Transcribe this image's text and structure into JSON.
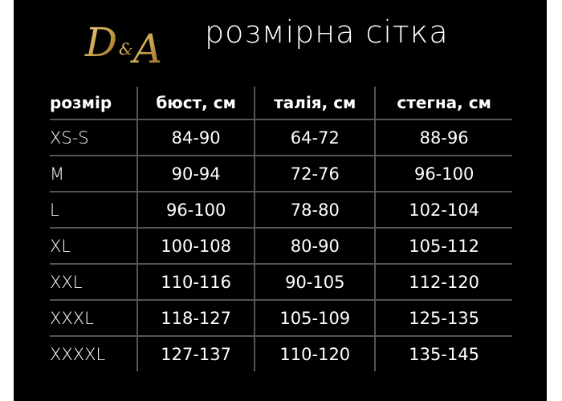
{
  "brand": {
    "logo_text": "D&A",
    "logo_color": "#c9a24a"
  },
  "title": "розмірна сітка",
  "table": {
    "headers": [
      "розмір",
      "бюст, см",
      "талія, см",
      "стегна, см"
    ],
    "rows": [
      [
        "XS-S",
        "84-90",
        "64-72",
        "88-96"
      ],
      [
        "M",
        "90-94",
        "72-76",
        "96-100"
      ],
      [
        "L",
        "96-100",
        "78-80",
        "102-104"
      ],
      [
        "XL",
        "100-108",
        "80-90",
        "105-112"
      ],
      [
        "XXL",
        "110-116",
        "90-105",
        "112-120"
      ],
      [
        "XXXL",
        "118-127",
        "105-109",
        "125-135"
      ],
      [
        "XXXXL",
        "127-137",
        "110-120",
        "135-145"
      ]
    ]
  }
}
